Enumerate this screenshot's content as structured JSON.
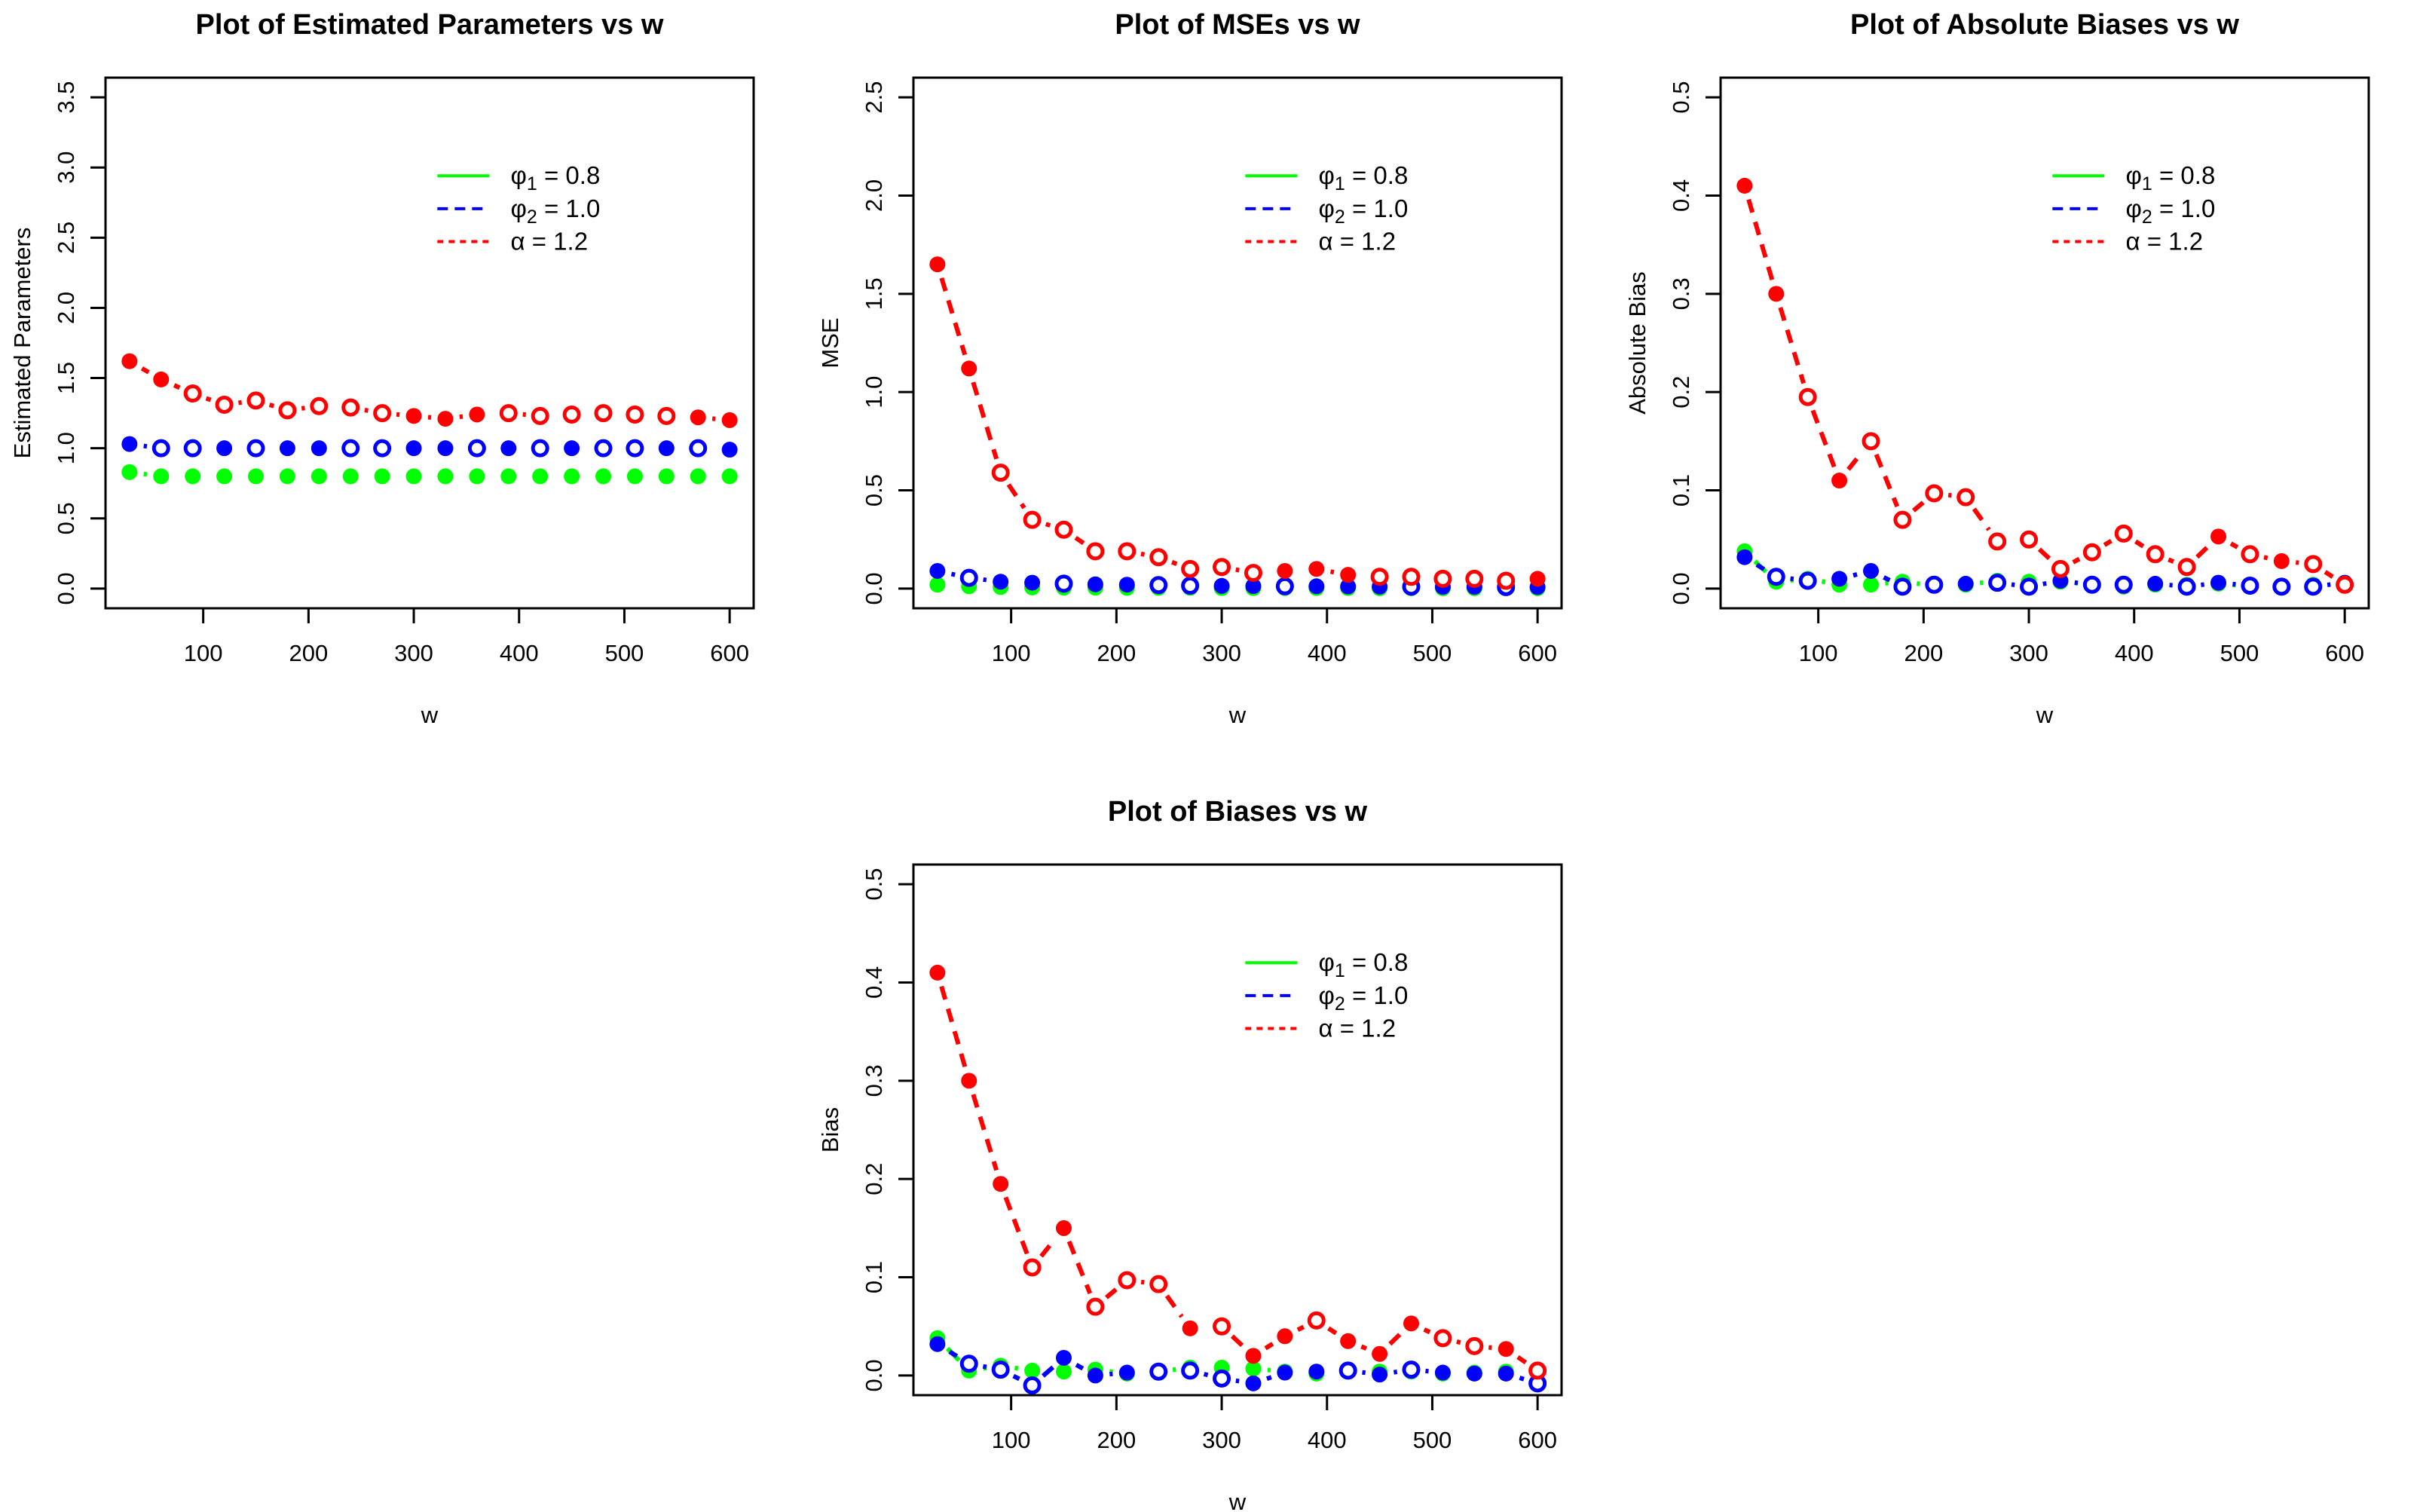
{
  "page": {
    "background": "#ffffff",
    "accent_colors": {
      "green": "#00FF00",
      "blue": "#0000FF",
      "red": "#FF0000",
      "axis": "#000000"
    }
  },
  "legend_labels": [
    {
      "symbol": "φ",
      "subscript": "1",
      "rest": " = 0.8"
    },
    {
      "symbol": "φ",
      "subscript": "2",
      "rest": " = 1.0"
    },
    {
      "symbol": "α",
      "subscript": "",
      "rest": " = 1.2"
    }
  ],
  "chart_data": [
    {
      "type": "line",
      "title": "Plot of Estimated Parameters vs w",
      "xlabel": "w",
      "ylabel": "Estimated Parameters",
      "xlim": [
        30,
        600
      ],
      "ylim": [
        0,
        3.5
      ],
      "xticks": [
        100,
        200,
        300,
        400,
        500,
        600
      ],
      "yticks": [
        0.0,
        0.5,
        1.0,
        1.5,
        2.0,
        2.5,
        3.0,
        3.5
      ],
      "x": [
        30,
        60,
        90,
        120,
        150,
        180,
        210,
        240,
        270,
        300,
        330,
        360,
        390,
        420,
        450,
        480,
        510,
        540,
        570,
        600
      ],
      "series": [
        {
          "name": "phi1",
          "legend": "φ1 = 0.8",
          "color": "#00FF00",
          "linetype": "solid",
          "values": [
            0.83,
            0.8,
            0.8,
            0.8,
            0.8,
            0.8,
            0.8,
            0.8,
            0.8,
            0.8,
            0.8,
            0.8,
            0.8,
            0.8,
            0.8,
            0.8,
            0.8,
            0.8,
            0.8,
            0.8
          ],
          "markers": [
            "f",
            "f",
            "f",
            "f",
            "f",
            "f",
            "f",
            "f",
            "f",
            "f",
            "f",
            "f",
            "f",
            "f",
            "f",
            "f",
            "f",
            "f",
            "f",
            "f"
          ]
        },
        {
          "name": "phi2",
          "legend": "φ2 = 1.0",
          "color": "#0000FF",
          "linetype": "dashed",
          "values": [
            1.03,
            1.0,
            1.0,
            1.0,
            1.0,
            1.0,
            1.0,
            1.0,
            1.0,
            1.0,
            1.0,
            1.0,
            1.0,
            1.0,
            1.0,
            1.0,
            1.0,
            1.0,
            1.0,
            0.99
          ],
          "markers": [
            "f",
            "o",
            "o",
            "f",
            "o",
            "f",
            "f",
            "o",
            "o",
            "f",
            "f",
            "o",
            "f",
            "o",
            "f",
            "o",
            "o",
            "f",
            "o",
            "f"
          ]
        },
        {
          "name": "alpha",
          "legend": "α = 1.2",
          "color": "#FF0000",
          "linetype": "dashed",
          "values": [
            1.62,
            1.49,
            1.39,
            1.31,
            1.34,
            1.27,
            1.3,
            1.29,
            1.25,
            1.23,
            1.21,
            1.24,
            1.25,
            1.23,
            1.24,
            1.25,
            1.24,
            1.23,
            1.22,
            1.2
          ],
          "markers": [
            "f",
            "f",
            "o",
            "o",
            "o",
            "o",
            "o",
            "o",
            "o",
            "f",
            "f",
            "f",
            "o",
            "o",
            "o",
            "o",
            "o",
            "o",
            "f",
            "f"
          ]
        }
      ]
    },
    {
      "type": "line",
      "title": "Plot of MSEs vs w",
      "xlabel": "w",
      "ylabel": "MSE",
      "xlim": [
        30,
        600
      ],
      "ylim": [
        0,
        2.5
      ],
      "xticks": [
        100,
        200,
        300,
        400,
        500,
        600
      ],
      "yticks": [
        0.0,
        0.5,
        1.0,
        1.5,
        2.0,
        2.5
      ],
      "x": [
        30,
        60,
        90,
        120,
        150,
        180,
        210,
        240,
        270,
        300,
        330,
        360,
        390,
        420,
        450,
        480,
        510,
        540,
        570,
        600
      ],
      "series": [
        {
          "name": "phi1",
          "legend": "φ1 = 0.8",
          "color": "#00FF00",
          "linetype": "solid",
          "values": [
            0.02,
            0.012,
            0.008,
            0.006,
            0.005,
            0.005,
            0.004,
            0.004,
            0.004,
            0.003,
            0.003,
            0.003,
            0.003,
            0.003,
            0.002,
            0.002,
            0.002,
            0.002,
            0.002,
            0.002
          ],
          "markers": [
            "f",
            "f",
            "f",
            "f",
            "f",
            "f",
            "f",
            "f",
            "f",
            "f",
            "f",
            "f",
            "f",
            "f",
            "f",
            "f",
            "f",
            "f",
            "f",
            "f"
          ]
        },
        {
          "name": "phi2",
          "legend": "φ2 = 1.0",
          "color": "#0000FF",
          "linetype": "dashed",
          "values": [
            0.09,
            0.055,
            0.035,
            0.03,
            0.025,
            0.022,
            0.02,
            0.018,
            0.015,
            0.014,
            0.013,
            0.012,
            0.012,
            0.011,
            0.01,
            0.01,
            0.009,
            0.009,
            0.008,
            0.008
          ],
          "markers": [
            "f",
            "o",
            "f",
            "f",
            "o",
            "f",
            "f",
            "o",
            "o",
            "f",
            "f",
            "o",
            "f",
            "f",
            "f",
            "o",
            "f",
            "f",
            "o",
            "f"
          ]
        },
        {
          "name": "alpha",
          "legend": "α = 1.2",
          "color": "#FF0000",
          "linetype": "dashed",
          "values": [
            1.65,
            1.12,
            0.59,
            0.35,
            0.3,
            0.19,
            0.19,
            0.16,
            0.1,
            0.11,
            0.08,
            0.09,
            0.1,
            0.07,
            0.06,
            0.06,
            0.05,
            0.05,
            0.04,
            0.05
          ],
          "markers": [
            "f",
            "f",
            "o",
            "o",
            "o",
            "o",
            "o",
            "o",
            "o",
            "o",
            "o",
            "f",
            "f",
            "f",
            "o",
            "o",
            "o",
            "o",
            "o",
            "f"
          ]
        }
      ]
    },
    {
      "type": "line",
      "title": "Plot of Absolute Biases vs w",
      "xlabel": "w",
      "ylabel": "Absolute Bias",
      "xlim": [
        30,
        600
      ],
      "ylim": [
        0,
        0.5
      ],
      "xticks": [
        100,
        200,
        300,
        400,
        500,
        600
      ],
      "yticks": [
        0.0,
        0.1,
        0.2,
        0.3,
        0.4,
        0.5
      ],
      "x": [
        30,
        60,
        90,
        120,
        150,
        180,
        210,
        240,
        270,
        300,
        330,
        360,
        390,
        420,
        450,
        480,
        510,
        540,
        570,
        600
      ],
      "series": [
        {
          "name": "phi1",
          "legend": "φ1 = 0.8",
          "color": "#00FF00",
          "linetype": "solid",
          "values": [
            0.038,
            0.007,
            0.01,
            0.004,
            0.004,
            0.007,
            0.003,
            0.004,
            0.008,
            0.007,
            0.007,
            0.004,
            0.002,
            0.004,
            0.004,
            0.005,
            0.002,
            0.003,
            0.004,
            0.004
          ],
          "markers": [
            "f",
            "f",
            "f",
            "f",
            "f",
            "f",
            "f",
            "f",
            "f",
            "f",
            "f",
            "f",
            "f",
            "f",
            "f",
            "f",
            "f",
            "f",
            "f",
            "f"
          ]
        },
        {
          "name": "phi2",
          "legend": "φ2 = 1.0",
          "color": "#0000FF",
          "linetype": "dashed",
          "values": [
            0.032,
            0.012,
            0.008,
            0.01,
            0.018,
            0.002,
            0.004,
            0.005,
            0.006,
            0.002,
            0.008,
            0.004,
            0.004,
            0.005,
            0.002,
            0.006,
            0.003,
            0.002,
            0.002,
            0.006
          ],
          "markers": [
            "f",
            "o",
            "o",
            "f",
            "f",
            "o",
            "o",
            "f",
            "o",
            "o",
            "f",
            "o",
            "o",
            "f",
            "o",
            "f",
            "o",
            "o",
            "o",
            "f"
          ]
        },
        {
          "name": "alpha",
          "legend": "α = 1.2",
          "color": "#FF0000",
          "linetype": "dashed",
          "values": [
            0.41,
            0.3,
            0.195,
            0.11,
            0.15,
            0.07,
            0.097,
            0.093,
            0.048,
            0.05,
            0.02,
            0.037,
            0.056,
            0.035,
            0.022,
            0.053,
            0.035,
            0.028,
            0.025,
            0.004
          ],
          "markers": [
            "f",
            "f",
            "o",
            "f",
            "o",
            "o",
            "o",
            "o",
            "o",
            "o",
            "o",
            "o",
            "o",
            "o",
            "o",
            "f",
            "o",
            "f",
            "o",
            "o"
          ]
        }
      ]
    },
    {
      "type": "line",
      "title": "Plot of Biases vs w",
      "xlabel": "w",
      "ylabel": "Bias",
      "xlim": [
        30,
        600
      ],
      "ylim": [
        0,
        0.5
      ],
      "xticks": [
        100,
        200,
        300,
        400,
        500,
        600
      ],
      "yticks": [
        0.0,
        0.1,
        0.2,
        0.3,
        0.4,
        0.5
      ],
      "x": [
        30,
        60,
        90,
        120,
        150,
        180,
        210,
        240,
        270,
        300,
        330,
        360,
        390,
        420,
        450,
        480,
        510,
        540,
        570,
        600
      ],
      "series": [
        {
          "name": "phi1",
          "legend": "φ1 = 0.8",
          "color": "#00FF00",
          "linetype": "solid",
          "values": [
            0.038,
            0.005,
            0.01,
            0.005,
            0.004,
            0.006,
            0.002,
            0.004,
            0.008,
            0.008,
            0.007,
            0.004,
            0.002,
            0.004,
            0.004,
            0.004,
            0.002,
            0.003,
            0.004,
            0.004
          ],
          "markers": [
            "f",
            "f",
            "f",
            "f",
            "f",
            "f",
            "f",
            "f",
            "f",
            "f",
            "f",
            "f",
            "f",
            "f",
            "f",
            "f",
            "f",
            "f",
            "f",
            "f"
          ]
        },
        {
          "name": "phi2",
          "legend": "φ2 = 1.0",
          "color": "#0000FF",
          "linetype": "dashed",
          "values": [
            0.032,
            0.012,
            0.006,
            -0.01,
            0.018,
            0.0,
            0.003,
            0.004,
            0.005,
            -0.003,
            -0.008,
            0.003,
            0.004,
            0.005,
            0.001,
            0.006,
            0.003,
            0.002,
            0.002,
            -0.008
          ],
          "markers": [
            "f",
            "o",
            "o",
            "o",
            "f",
            "f",
            "f",
            "o",
            "o",
            "o",
            "f",
            "f",
            "f",
            "o",
            "f",
            "o",
            "f",
            "f",
            "f",
            "o"
          ]
        },
        {
          "name": "alpha",
          "legend": "α = 1.2",
          "color": "#FF0000",
          "linetype": "dashed",
          "values": [
            0.41,
            0.3,
            0.195,
            0.11,
            0.15,
            0.07,
            0.097,
            0.093,
            0.048,
            0.05,
            0.02,
            0.04,
            0.056,
            0.035,
            0.022,
            0.053,
            0.038,
            0.03,
            0.027,
            0.005
          ],
          "markers": [
            "f",
            "f",
            "f",
            "o",
            "f",
            "o",
            "o",
            "o",
            "f",
            "o",
            "f",
            "f",
            "o",
            "f",
            "f",
            "f",
            "o",
            "o",
            "f",
            "o"
          ]
        }
      ]
    }
  ]
}
